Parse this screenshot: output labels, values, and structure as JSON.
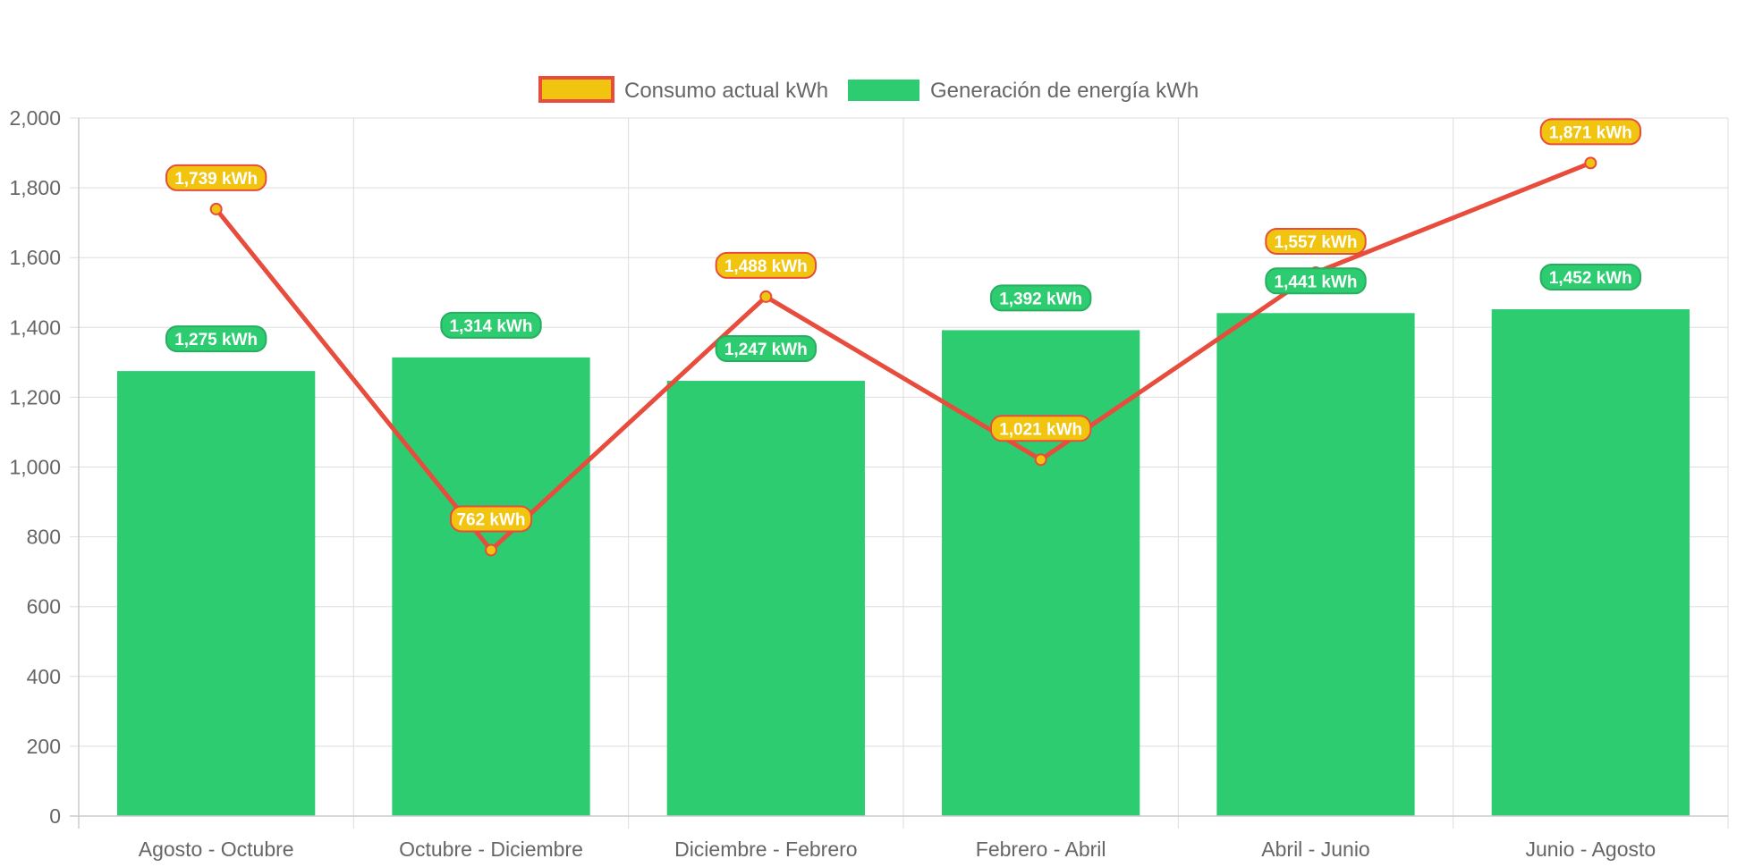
{
  "chart_data": {
    "type": "bar",
    "categories": [
      "Agosto - Octubre",
      "Octubre - Diciembre",
      "Diciembre - Febrero",
      "Febrero - Abril",
      "Abril - Junio",
      "Junio - Agosto"
    ],
    "series": [
      {
        "name": "Consumo actual kWh",
        "type": "line",
        "values": [
          1739,
          762,
          1488,
          1021,
          1557,
          1871
        ],
        "labels": [
          "1,739 kWh",
          "762 kWh",
          "1,488 kWh",
          "1,021 kWh",
          "1,557 kWh",
          "1,871 kWh"
        ],
        "color": "#e74c3c",
        "fill": "#f1c40f"
      },
      {
        "name": "Generación de energía kWh",
        "type": "bar",
        "values": [
          1275,
          1314,
          1247,
          1392,
          1441,
          1452
        ],
        "labels": [
          "1,275 kWh",
          "1,314 kWh",
          "1,247 kWh",
          "1,392 kWh",
          "1,441 kWh",
          "1,452 kWh"
        ],
        "color": "#2ecc71"
      }
    ],
    "y_ticks": [
      "0",
      "200",
      "400",
      "600",
      "800",
      "1,000",
      "1,200",
      "1,400",
      "1,600",
      "1,800",
      "2,000"
    ],
    "ylim": [
      0,
      2000
    ],
    "grid": true,
    "legend_position": "top"
  }
}
